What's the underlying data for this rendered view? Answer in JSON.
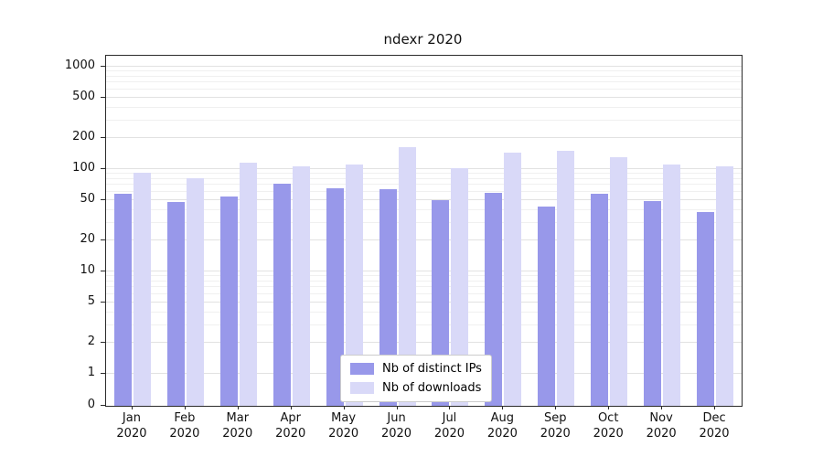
{
  "chart_data": {
    "type": "bar",
    "title": "ndexr 2020",
    "xlabel": "",
    "ylabel": "",
    "yscale": "symlog",
    "ylim": [
      0,
      1000
    ],
    "yticks": [
      0,
      1,
      2,
      5,
      10,
      20,
      50,
      100,
      200,
      500,
      1000
    ],
    "grid": true,
    "legend_position": "lower center inside",
    "categories": [
      "Jan 2020",
      "Feb 2020",
      "Mar 2020",
      "Apr 2020",
      "May 2020",
      "Jun 2020",
      "Jul 2020",
      "Aug 2020",
      "Sep 2020",
      "Oct 2020",
      "Nov 2020",
      "Dec 2020"
    ],
    "series": [
      {
        "name": "Nb of distinct IPs",
        "color": "#9898ea",
        "values": [
          57,
          48,
          54,
          72,
          65,
          64,
          50,
          59,
          43,
          57,
          49,
          38
        ]
      },
      {
        "name": "Nb of downloads",
        "color": "#d9d9f8",
        "values": [
          92,
          82,
          115,
          107,
          112,
          165,
          103,
          145,
          152,
          130,
          110,
          107
        ]
      }
    ]
  }
}
